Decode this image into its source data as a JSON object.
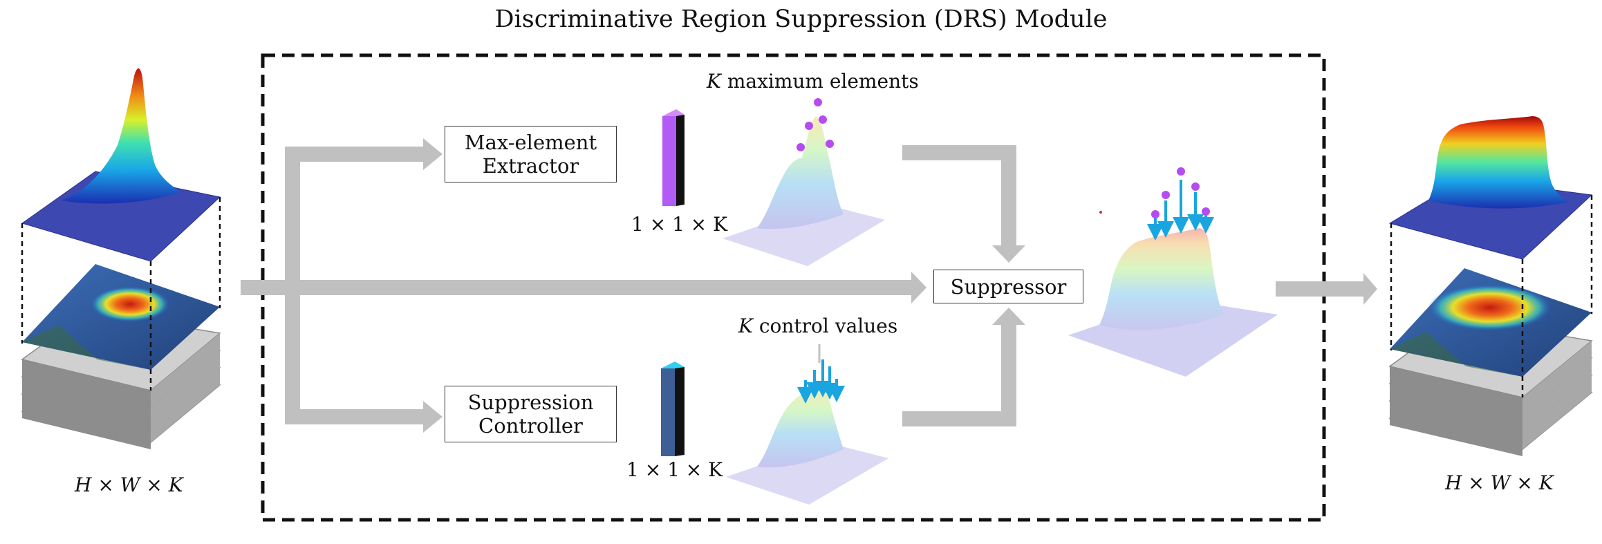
{
  "title": "Discriminative Region Suppression (DRS) Module",
  "blocks": {
    "extractor": [
      "Max-element",
      "Extractor"
    ],
    "controller": [
      "Suppression",
      "Controller"
    ],
    "suppressor": "Suppressor"
  },
  "annotations": {
    "k_max": "maximum elements",
    "k_ctrl": "control values",
    "k_symbol": "K",
    "vec_shape_top": "1 × 1 × K",
    "vec_shape_bottom": "1 × 1 × K",
    "input_shape": "H × W × K",
    "output_shape": "H × W × K"
  },
  "colors": {
    "arrow": "#c0c0c0",
    "max_vector": "#b35cf5",
    "control_vector": "#3d5f96",
    "control_vector_top": "#2fd0f4",
    "max_dot": "#b54cf0",
    "suppress_arrow": "#1aa5e0",
    "module_border": "#111111"
  }
}
